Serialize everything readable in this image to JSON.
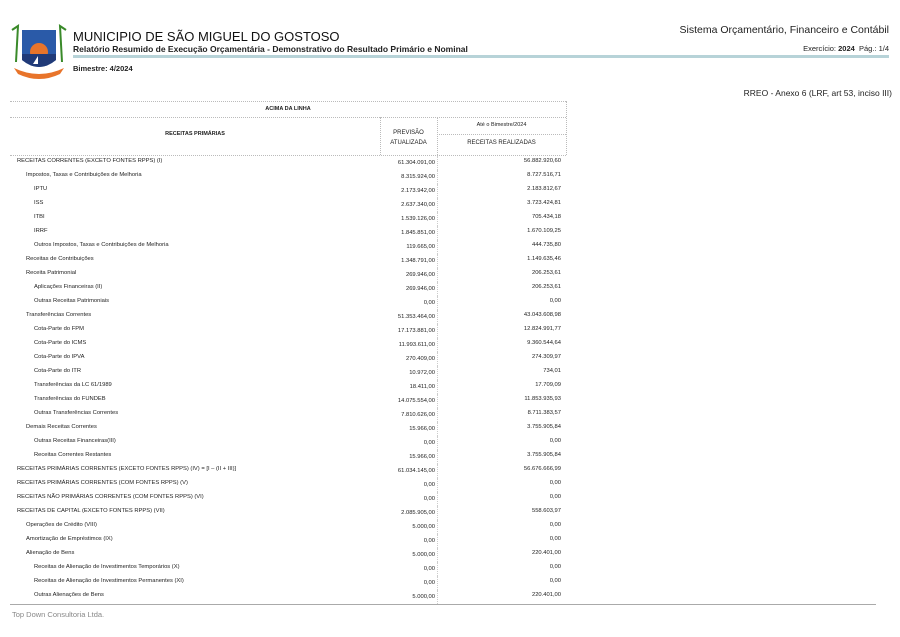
{
  "header": {
    "municipality": "MUNICIPIO DE SÃO MIGUEL DO GOSTOSO",
    "report_title": "Relatório Resumido de Execução Orçamentária - Demonstrativo do Resultado Primário e Nominal",
    "bimester": "Bimestre: 4/2024",
    "system": "Sistema Orçamentário, Financeiro e Contábil",
    "exercise_label": "Exercício:",
    "exercise_year": "2024",
    "page": "Pág.: 1/4",
    "annex": "RREO -  Anexo 6  (LRF, art 53, inciso III)"
  },
  "table": {
    "section": "ACIMA DA LINHA",
    "col_receitas": "RECEITAS PRIMÁRIAS",
    "col_previsao": "PREVISÃO ATUALIZADA",
    "col_period": "Até o Bimestre/2024",
    "col_realizadas": "RECEITAS REALIZADAS",
    "rows": [
      {
        "label": "RECEITAS CORRENTES (EXCETO FONTES RPPS) (I)",
        "level": 0,
        "previsao": "61.304.091,00",
        "realizadas": "56.882.920,60"
      },
      {
        "label": "Impostos, Taxas e Contribuições de Melhoria",
        "level": 1,
        "previsao": "8.315.924,00",
        "realizadas": "8.727.516,71"
      },
      {
        "label": "IPTU",
        "level": 2,
        "previsao": "2.173.942,00",
        "realizadas": "2.183.812,67"
      },
      {
        "label": "ISS",
        "level": 2,
        "previsao": "2.637.340,00",
        "realizadas": "3.723.424,81"
      },
      {
        "label": "ITBI",
        "level": 2,
        "previsao": "1.539.126,00",
        "realizadas": "705.434,18"
      },
      {
        "label": "IRRF",
        "level": 2,
        "previsao": "1.845.851,00",
        "realizadas": "1.670.109,25"
      },
      {
        "label": "Outros Impostos, Taxas e Contribuições de Melhoria",
        "level": 2,
        "previsao": "119.665,00",
        "realizadas": "444.735,80"
      },
      {
        "label": "Receitas de Contribuições",
        "level": 1,
        "previsao": "1.348.791,00",
        "realizadas": "1.149.635,46"
      },
      {
        "label": "Receita Patrimonial",
        "level": 1,
        "previsao": "269.946,00",
        "realizadas": "206.253,61"
      },
      {
        "label": "Aplicações Financeiras (II)",
        "level": 2,
        "previsao": "269.946,00",
        "realizadas": "206.253,61"
      },
      {
        "label": "Outras Receitas Patrimoniais",
        "level": 2,
        "previsao": "0,00",
        "realizadas": "0,00"
      },
      {
        "label": "Transferências Correntes",
        "level": 1,
        "previsao": "51.353.464,00",
        "realizadas": "43.043.608,98"
      },
      {
        "label": "Cota-Parte do FPM",
        "level": 2,
        "previsao": "17.173.881,00",
        "realizadas": "12.824.991,77"
      },
      {
        "label": "Cota-Parte do ICMS",
        "level": 2,
        "previsao": "11.993.611,00",
        "realizadas": "9.360.544,64"
      },
      {
        "label": "Cota-Parte do IPVA",
        "level": 2,
        "previsao": "270.409,00",
        "realizadas": "274.309,97"
      },
      {
        "label": "Cota-Parte do ITR",
        "level": 2,
        "previsao": "10.972,00",
        "realizadas": "734,01"
      },
      {
        "label": "Transferências da LC 61/1989",
        "level": 2,
        "previsao": "18.411,00",
        "realizadas": "17.709,09"
      },
      {
        "label": "Transferências do FUNDEB",
        "level": 2,
        "previsao": "14.075.554,00",
        "realizadas": "11.853.935,93"
      },
      {
        "label": "Outras Transferências Correntes",
        "level": 2,
        "previsao": "7.810.626,00",
        "realizadas": "8.711.383,57"
      },
      {
        "label": "Demais Receitas Correntes",
        "level": 1,
        "previsao": "15.966,00",
        "realizadas": "3.755.905,84"
      },
      {
        "label": "Outras Receitas Financeiras(III)",
        "level": 2,
        "previsao": "0,00",
        "realizadas": "0,00"
      },
      {
        "label": "Receitas Correntes Restantes",
        "level": 2,
        "previsao": "15.966,00",
        "realizadas": "3.755.905,84"
      },
      {
        "label": "RECEITAS PRIMÁRIAS CORRENTES (EXCETO FONTES RPPS) (IV) = [I – (II + III)]",
        "level": 0,
        "previsao": "61.034.145,00",
        "realizadas": "56.676.666,99"
      },
      {
        "label": "RECEITAS PRIMÁRIAS CORRENTES (COM FONTES RPPS) (V)",
        "level": 0,
        "previsao": "0,00",
        "realizadas": "0,00"
      },
      {
        "label": "RECEITAS NÃO PRIMÁRIAS CORRENTES (COM FONTES RPPS) (VI)",
        "level": 0,
        "previsao": "0,00",
        "realizadas": "0,00"
      },
      {
        "label": "RECEITAS DE CAPITAL (EXCETO FONTES RPPS) (VII)",
        "level": 0,
        "previsao": "2.085.905,00",
        "realizadas": "558.603,97"
      },
      {
        "label": "Operações de Crédito (VIII)",
        "level": 1,
        "previsao": "5.000,00",
        "realizadas": "0,00"
      },
      {
        "label": "Amortização de Empréstimos (IX)",
        "level": 1,
        "previsao": "0,00",
        "realizadas": "0,00"
      },
      {
        "label": "Alienação de Bens",
        "level": 1,
        "previsao": "5.000,00",
        "realizadas": "220.401,00"
      },
      {
        "label": "Receitas de Alienação de Investimentos Temporários (X)",
        "level": 2,
        "previsao": "0,00",
        "realizadas": "0,00"
      },
      {
        "label": "Receitas de Alienação de Investimentos Permanentes (XI)",
        "level": 2,
        "previsao": "0,00",
        "realizadas": "0,00"
      },
      {
        "label": "Outras Alienações de Bens",
        "level": 2,
        "previsao": "5.000,00",
        "realizadas": "220.401,00"
      }
    ]
  },
  "footer": {
    "company": "Top Down Consultoria Ltda."
  }
}
